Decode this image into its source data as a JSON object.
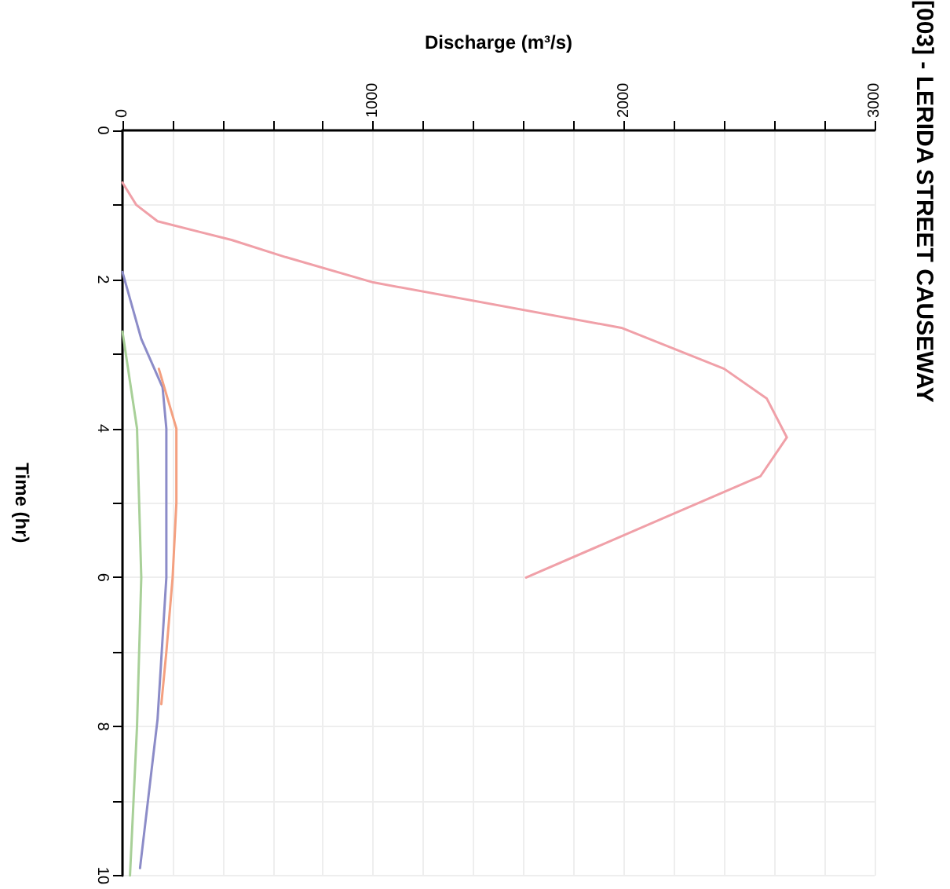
{
  "chart_data": {
    "type": "line",
    "title": "[003] - LERIDA STREET CAUSEWAY",
    "xlabel": "Discharge (m³/s)",
    "ylabel": "Time (hr)",
    "xlim": [
      0,
      3000
    ],
    "xticks": [
      0,
      {
        "value": 200,
        "label": null
      },
      {
        "value": 400,
        "label": null
      },
      {
        "value": 600,
        "label": null
      },
      {
        "value": 800,
        "label": null
      },
      1000,
      {
        "value": 1200,
        "label": null
      },
      {
        "value": 1400,
        "label": null
      },
      {
        "value": 1600,
        "label": null
      },
      {
        "value": 1800,
        "label": null
      },
      2000,
      {
        "value": 2200,
        "label": null
      },
      {
        "value": 2400,
        "label": null
      },
      {
        "value": 2600,
        "label": null
      },
      {
        "value": 2800,
        "label": null
      },
      3000
    ],
    "ylim": [
      10,
      0
    ],
    "yticks": [
      0,
      {
        "value": 1,
        "label": null
      },
      2,
      {
        "value": 3,
        "label": null
      },
      4,
      {
        "value": 5,
        "label": null
      },
      6,
      {
        "value": 7,
        "label": null
      },
      8,
      {
        "value": 9,
        "label": null
      },
      10
    ],
    "grid": true,
    "marker": "none",
    "line_style": "solid",
    "series": [
      {
        "color": "#f0a0a8",
        "x": [
          0,
          55,
          140,
          435,
          650,
          1000,
          1990,
          2400,
          2570,
          2650,
          2545,
          2160,
          1610
        ],
        "values": [
          0.7,
          1.0,
          1.22,
          1.47,
          1.7,
          2.04,
          2.65,
          3.2,
          3.6,
          4.12,
          4.64,
          5.2,
          6.0
        ]
      },
      {
        "color": "#8c8cc8",
        "x": [
          0,
          75,
          160,
          175,
          175,
          140,
          70
        ],
        "values": [
          1.9,
          2.8,
          3.45,
          4,
          6,
          7.9,
          9.9
        ]
      },
      {
        "color": "#f4a080",
        "x": [
          145,
          215,
          215,
          200,
          175,
          155
        ],
        "values": [
          3.2,
          4,
          5,
          6,
          7,
          7.7
        ]
      },
      {
        "color": "#a8d098",
        "x": [
          0,
          58,
          75,
          58,
          30
        ],
        "values": [
          2.7,
          4,
          6,
          8,
          10
        ]
      }
    ]
  }
}
